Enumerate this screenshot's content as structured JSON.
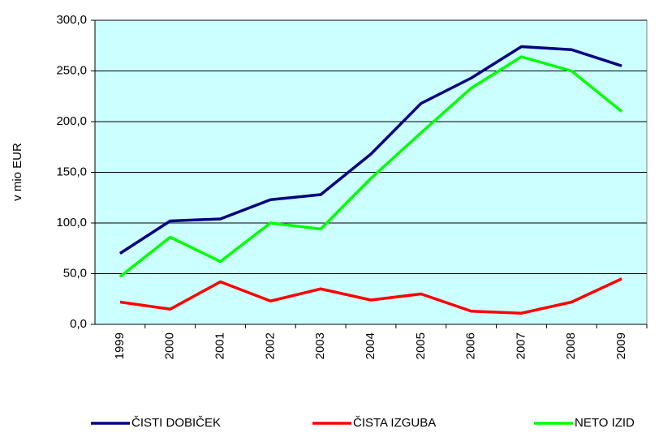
{
  "chart_data": {
    "type": "line",
    "y_label": "v mio EUR",
    "categories": [
      "1999",
      "2000",
      "2001",
      "2002",
      "2003",
      "2004",
      "2005",
      "2006",
      "2007",
      "2008",
      "2009"
    ],
    "series": [
      {
        "name": "ČISTI DOBIČEK",
        "color": "#000080",
        "values": [
          70,
          102,
          104,
          123,
          128,
          168,
          218,
          243,
          274,
          271,
          255
        ]
      },
      {
        "name": "ČISTA IZGUBA",
        "color": "#ff0000",
        "values": [
          22,
          15,
          42,
          23,
          35,
          24,
          30,
          13,
          11,
          22,
          45
        ]
      },
      {
        "name": "NETO IZID",
        "color": "#00ff00",
        "values": [
          47,
          86,
          62,
          100,
          94,
          144,
          189,
          233,
          264,
          250,
          210
        ]
      }
    ],
    "ylim": [
      0,
      300
    ],
    "yticks": [
      {
        "value": 0,
        "label": "0,0"
      },
      {
        "value": 50,
        "label": "50,0"
      },
      {
        "value": 100,
        "label": "100,0"
      },
      {
        "value": 150,
        "label": "150,0"
      },
      {
        "value": 200,
        "label": "200,0"
      },
      {
        "value": 250,
        "label": "250,0"
      },
      {
        "value": 300,
        "label": "300,0"
      }
    ],
    "grid": true,
    "plot_background": "#ccffff",
    "legend": "bottom"
  }
}
